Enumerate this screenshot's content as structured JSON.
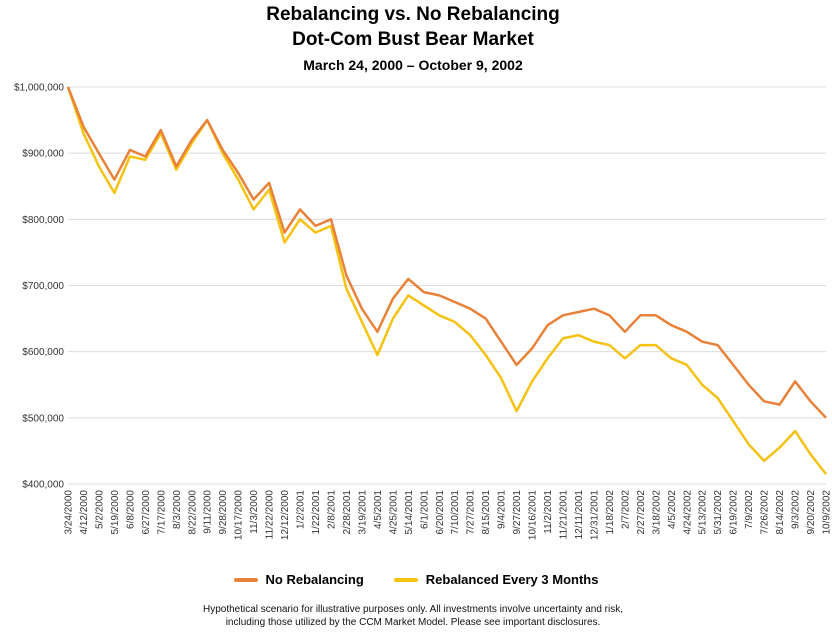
{
  "chart_data": {
    "type": "line",
    "title": "Rebalancing vs. No Rebalancing",
    "subtitle": "Dot-Com Bust Bear Market",
    "date_range": "March 24, 2000 – October 9, 2002",
    "ylim": [
      400000,
      1000000
    ],
    "y_ticks": [
      "$400,000",
      "$500,000",
      "$600,000",
      "$700,000",
      "$800,000",
      "$900,000",
      "$1,000,000"
    ],
    "y_tick_values": [
      400000,
      500000,
      600000,
      700000,
      800000,
      900000,
      1000000
    ],
    "x_ticks": [
      "3/24/2000",
      "4/12/2000",
      "5/2/2000",
      "5/19/2000",
      "6/8/2000",
      "6/27/2000",
      "7/17/2000",
      "8/3/2000",
      "8/22/2000",
      "9/11/2000",
      "9/28/2000",
      "10/17/2000",
      "11/3/2000",
      "11/22/2000",
      "12/12/2000",
      "1/2/2001",
      "1/22/2001",
      "2/8/2001",
      "2/28/2001",
      "3/19/2001",
      "4/5/2001",
      "4/25/2001",
      "5/14/2001",
      "6/1/2001",
      "6/20/2001",
      "7/10/2001",
      "7/27/2001",
      "8/15/2001",
      "9/4/2001",
      "9/27/2001",
      "10/16/2001",
      "11/2/2001",
      "11/21/2001",
      "12/11/2001",
      "12/31/2001",
      "1/18/2002",
      "2/7/2002",
      "2/27/2002",
      "3/18/2002",
      "4/5/2002",
      "4/24/2002",
      "5/13/2002",
      "5/31/2002",
      "6/19/2002",
      "7/9/2002",
      "7/26/2002",
      "8/14/2002",
      "9/3/2002",
      "9/20/2002",
      "10/9/2002"
    ],
    "series": [
      {
        "name": "No Rebalancing",
        "color": "#E8823A",
        "values": [
          1000000,
          940000,
          900000,
          860000,
          905000,
          895000,
          935000,
          880000,
          920000,
          950000,
          905000,
          870000,
          830000,
          855000,
          780000,
          815000,
          790000,
          800000,
          715000,
          665000,
          630000,
          680000,
          710000,
          690000,
          685000,
          675000,
          665000,
          650000,
          615000,
          580000,
          605000,
          640000,
          655000,
          660000,
          665000,
          655000,
          630000,
          655000,
          655000,
          640000,
          630000,
          615000,
          610000,
          580000,
          550000,
          525000,
          520000,
          555000,
          525000,
          500000
        ]
      },
      {
        "name": "Rebalanced Every 3 Months",
        "color": "#F5C211",
        "values": [
          1000000,
          930000,
          880000,
          840000,
          895000,
          890000,
          930000,
          875000,
          915000,
          950000,
          900000,
          860000,
          815000,
          845000,
          765000,
          800000,
          780000,
          790000,
          695000,
          645000,
          595000,
          650000,
          685000,
          670000,
          655000,
          645000,
          625000,
          595000,
          560000,
          510000,
          555000,
          590000,
          620000,
          625000,
          615000,
          610000,
          590000,
          610000,
          610000,
          590000,
          580000,
          550000,
          530000,
          495000,
          460000,
          435000,
          455000,
          480000,
          445000,
          415000
        ]
      }
    ]
  },
  "footnote": {
    "line1": "Hypothetical scenario for illustrative purposes only.  All investments involve uncertainty and risk,",
    "line2": "including those utilized by the CCM Market Model.  Please see important disclosures."
  }
}
